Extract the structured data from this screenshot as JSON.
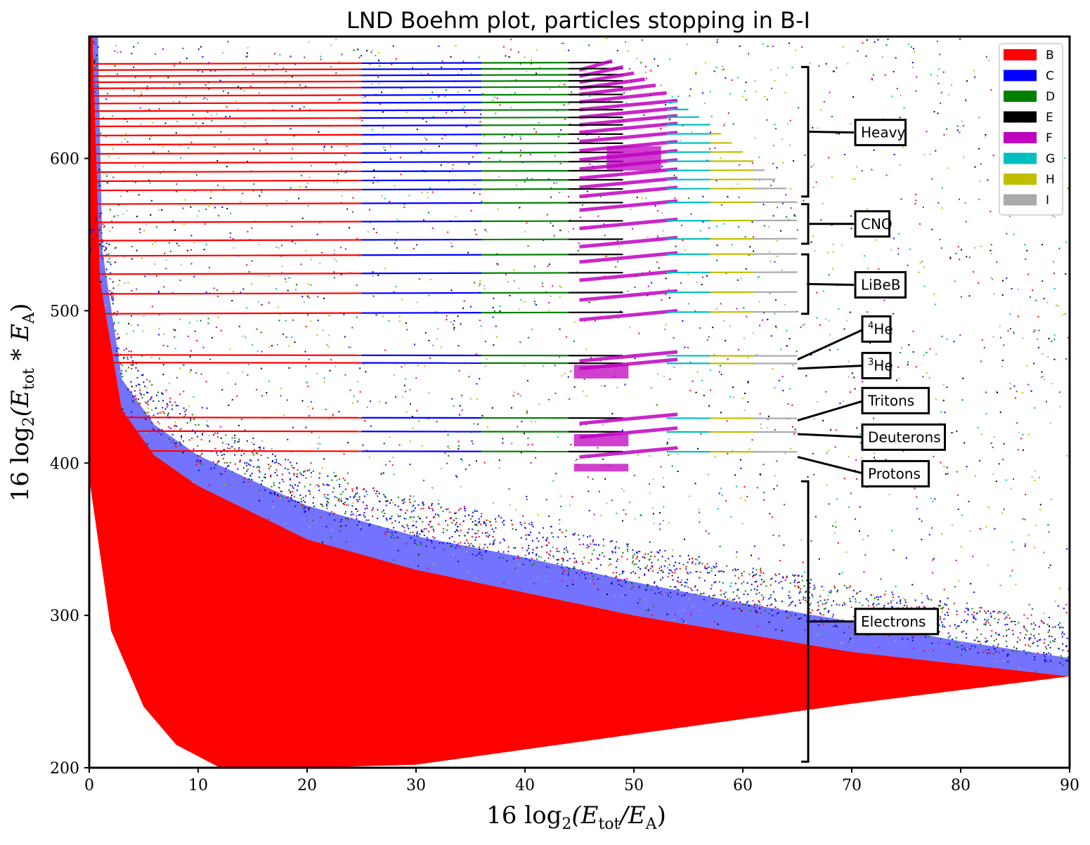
{
  "chart_data": {
    "type": "scatter",
    "title": "LND Boehm plot, particles stopping in B-I",
    "xlabel_parts": [
      "16 log",
      "2",
      "(E",
      "tot",
      "/E",
      "A",
      ")"
    ],
    "ylabel_parts": [
      "16 log",
      "2",
      "(E",
      "tot",
      " * E",
      "A",
      ")"
    ],
    "xlim": [
      0,
      90
    ],
    "ylim": [
      200,
      680
    ],
    "xticks": [
      "0",
      "10",
      "20",
      "30",
      "40",
      "50",
      "60",
      "70",
      "80",
      "90"
    ],
    "yticks": [
      "200",
      "300",
      "400",
      "500",
      "600"
    ],
    "grid": false,
    "legend_position": "top-right",
    "legend": [
      {
        "label": "B",
        "color": "#ff0000"
      },
      {
        "label": "C",
        "color": "#0000ff"
      },
      {
        "label": "D",
        "color": "#008000"
      },
      {
        "label": "E",
        "color": "#000000"
      },
      {
        "label": "F",
        "color": "#bf00bf"
      },
      {
        "label": "G",
        "color": "#00bfbf"
      },
      {
        "label": "H",
        "color": "#bfbf00"
      },
      {
        "label": "I",
        "color": "#aaaaaa"
      }
    ],
    "particle_groups": [
      {
        "label": "Heavy",
        "y_range": [
          575,
          660
        ],
        "y_label": 617
      },
      {
        "label": "CNO",
        "y_range": [
          544,
          570
        ],
        "y_label": 557
      },
      {
        "label": "LiBeB",
        "y_range": [
          498,
          537
        ],
        "y_label": 517
      },
      {
        "label": "⁴He",
        "sup": "4",
        "name": "He",
        "y_point": 468,
        "y_label": 488
      },
      {
        "label": "³He",
        "sup": "3",
        "name": "He",
        "y_point": 462,
        "y_label": 464
      },
      {
        "label": "Tritons",
        "y_point": 428,
        "y_label": 441
      },
      {
        "label": "Deuterons",
        "y_point": 419,
        "y_label": 417
      },
      {
        "label": "Protons",
        "y_point": 404,
        "y_label": 393
      },
      {
        "label": "Electrons",
        "y_range": [
          204,
          388
        ],
        "y_label": 296
      }
    ],
    "tracks": {
      "heavy_y": [
        662,
        658,
        654,
        650,
        646,
        641,
        636,
        631,
        626,
        621,
        615,
        609,
        603,
        597,
        591,
        585,
        579
      ],
      "heavy_x_end": [
        48,
        49,
        50,
        51,
        52,
        53,
        54,
        55,
        56,
        57,
        58,
        59,
        60,
        61,
        62,
        63,
        64
      ],
      "cno_y": [
        570,
        558,
        546
      ],
      "libeb_y": [
        536,
        524,
        511,
        498
      ],
      "he4_y": 471,
      "he3_y": 466,
      "triton_y": 430,
      "deuteron_y": 421,
      "proton_y": 408
    },
    "electron_band": {
      "upper_left_y": 680,
      "lower_curve_x": [
        0,
        2,
        5,
        8,
        12,
        20,
        30,
        40,
        50,
        60,
        70,
        80,
        90
      ],
      "lower_curve_y": [
        390,
        290,
        240,
        215,
        200,
        200,
        202,
        212,
        222,
        232,
        242,
        251,
        260
      ],
      "upper_curve_x": [
        0.3,
        1,
        3,
        6,
        10,
        20,
        30,
        40,
        50,
        60,
        70,
        80,
        90
      ],
      "upper_curve_y": [
        680,
        520,
        435,
        405,
        385,
        350,
        330,
        315,
        300,
        288,
        276,
        268,
        260
      ]
    }
  }
}
